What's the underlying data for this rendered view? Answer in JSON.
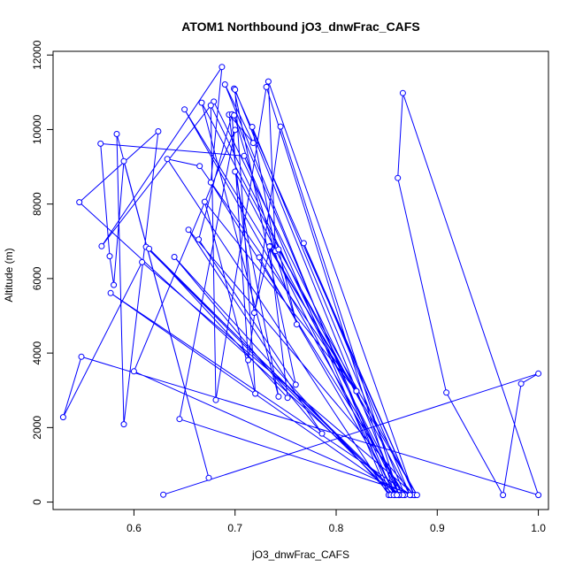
{
  "chart_data": {
    "type": "line",
    "title": "ATOM1 Northbound jO3_dnwFrac_CAFS",
    "xlabel": "jO3_dnwFrac_CAFS",
    "ylabel": "Altitude (m)",
    "xlim": [
      0.52,
      1.01
    ],
    "ylim": [
      -200,
      12100
    ],
    "xticks": [
      0.6,
      0.7,
      0.8,
      0.9,
      1.0
    ],
    "xtick_labels": [
      "0.6",
      "0.7",
      "0.8",
      "0.9",
      "1.0"
    ],
    "yticks": [
      0,
      2000,
      4000,
      6000,
      8000,
      10000,
      12000
    ],
    "ytick_labels": [
      "0",
      "2000",
      "4000",
      "6000",
      "8000",
      "10000",
      "12000"
    ],
    "grid": false,
    "legend": "none",
    "colors": {
      "series": "#0000ff",
      "axis": "#000000"
    },
    "series": [
      {
        "points": [
          [
            0.629,
            200
          ],
          [
            1.0,
            3450
          ],
          [
            0.983,
            3180
          ],
          [
            0.965,
            190
          ],
          [
            0.909,
            2940
          ],
          [
            0.861,
            8700
          ],
          [
            0.866,
            10980
          ],
          [
            1.0,
            190
          ],
          [
            0.548,
            3900
          ],
          [
            0.53,
            2280
          ],
          [
            0.608,
            6440
          ],
          [
            0.878,
            190
          ],
          [
            0.645,
            2230
          ],
          [
            0.7,
            9990
          ],
          [
            0.6,
            3510
          ],
          [
            0.874,
            190
          ],
          [
            0.577,
            5610
          ],
          [
            0.863,
            190
          ],
          [
            0.546,
            8050
          ],
          [
            0.624,
            9950
          ],
          [
            0.59,
            2090
          ],
          [
            0.583,
            9880
          ],
          [
            0.674,
            650
          ],
          [
            0.59,
            9150
          ],
          [
            0.58,
            5830
          ],
          [
            0.576,
            6600
          ],
          [
            0.567,
            9620
          ],
          [
            0.709,
            9290
          ],
          [
            0.852,
            190
          ],
          [
            0.633,
            9210
          ],
          [
            0.665,
            9020
          ],
          [
            0.82,
            2980
          ],
          [
            0.679,
            10750
          ],
          [
            0.568,
            6870
          ],
          [
            0.687,
            11680
          ],
          [
            0.676,
            8580
          ],
          [
            0.868,
            190
          ],
          [
            0.717,
            10070
          ],
          [
            0.74,
            6740
          ],
          [
            0.733,
            11290
          ],
          [
            0.877,
            190
          ],
          [
            0.654,
            7310
          ],
          [
            0.786,
            1840
          ],
          [
            0.64,
            6580
          ],
          [
            0.854,
            190
          ],
          [
            0.69,
            11210
          ],
          [
            0.718,
            9640
          ],
          [
            0.694,
            10400
          ],
          [
            0.719,
            5080
          ],
          [
            0.735,
            6870
          ],
          [
            0.858,
            190
          ],
          [
            0.731,
            11140
          ],
          [
            0.681,
            2740
          ],
          [
            0.676,
            10650
          ],
          [
            0.862,
            190
          ],
          [
            0.745,
            10080
          ],
          [
            0.713,
            3810
          ],
          [
            0.697,
            10410
          ],
          [
            0.664,
            7050
          ],
          [
            0.76,
            3150
          ],
          [
            0.699,
            11100
          ],
          [
            0.877,
            190
          ],
          [
            0.768,
            6950
          ],
          [
            0.873,
            190
          ],
          [
            0.667,
            10720
          ],
          [
            0.743,
            2830
          ],
          [
            0.7,
            8870
          ],
          [
            0.866,
            190
          ],
          [
            0.65,
            10540
          ],
          [
            0.82,
            2980
          ],
          [
            0.67,
            8060
          ],
          [
            0.72,
            2910
          ],
          [
            0.7,
            11070
          ],
          [
            0.862,
            190
          ],
          [
            0.612,
            6850
          ],
          [
            0.857,
            190
          ],
          [
            0.699,
            10380
          ],
          [
            0.761,
            4770
          ],
          [
            0.743,
            6780
          ],
          [
            0.88,
            190
          ],
          [
            0.734,
            6860
          ],
          [
            0.752,
            2800
          ],
          [
            0.615,
            6800
          ],
          [
            0.86,
            190
          ],
          [
            0.724,
            6570
          ]
        ]
      }
    ]
  }
}
